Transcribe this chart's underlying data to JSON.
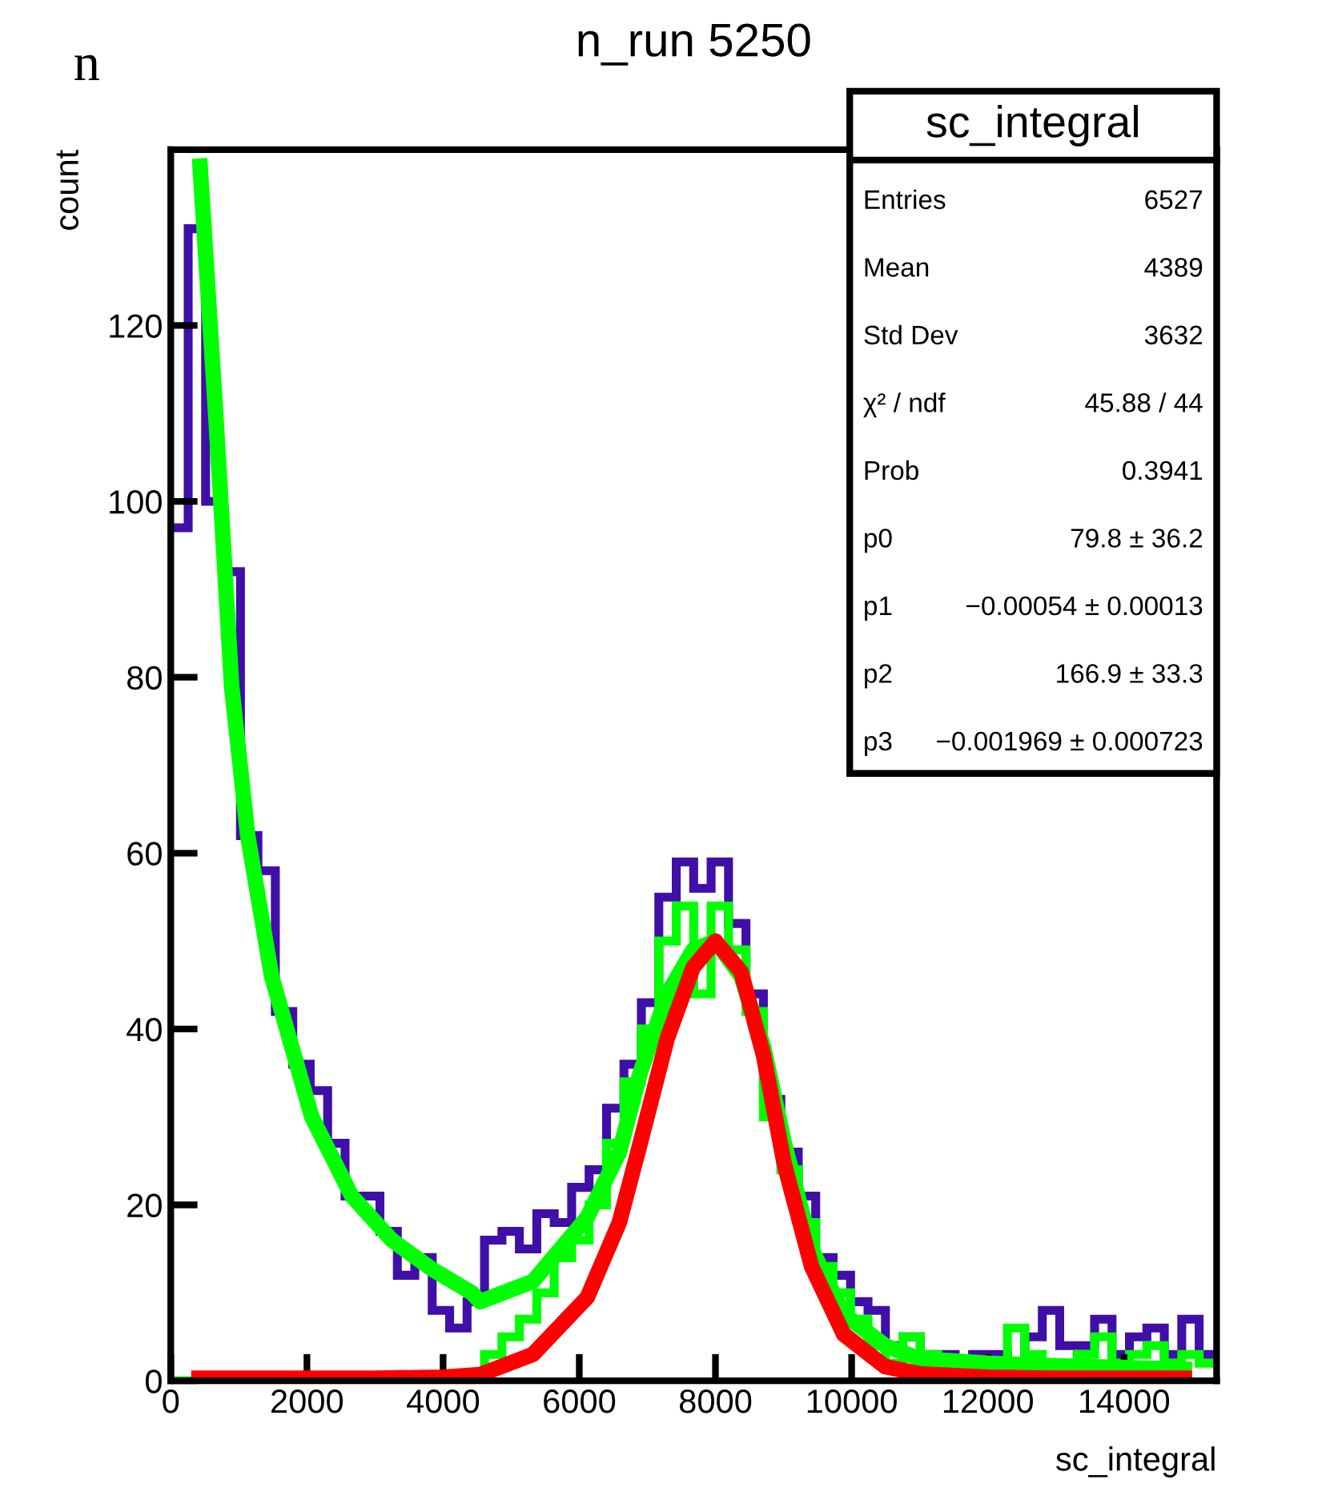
{
  "chart_data": {
    "type": "histogram",
    "title": "n_run 5250",
    "xlabel": "sc_integral",
    "ylabel": "count",
    "bins": [
      0,
      256,
      512,
      768,
      1024,
      1280,
      1536,
      1792,
      2048,
      2304,
      2560,
      2816,
      3072,
      3328,
      3584,
      3840,
      4096,
      4352,
      4608,
      4864,
      5120,
      5376,
      5632,
      5888,
      6144,
      6400,
      6656,
      6912,
      7168,
      7424,
      7680,
      7936,
      8192,
      8448,
      8704,
      8960,
      9216,
      9472,
      9728,
      9984,
      10240,
      10496,
      10752,
      11008,
      11264,
      11520,
      11776,
      12032,
      12288,
      12544,
      12800,
      13056,
      13312,
      13568,
      13824,
      14080,
      14336,
      14592,
      14848,
      15104,
      15360
    ],
    "series": [
      {
        "color": "#3f0fa8",
        "values": [
          97,
          131,
          100,
          92,
          62,
          58,
          42,
          36,
          33,
          27,
          21,
          21,
          17,
          12,
          14,
          8,
          6,
          9,
          16,
          17,
          15,
          19,
          18,
          22,
          24,
          31,
          36,
          43,
          55,
          59,
          56,
          59,
          52,
          44,
          32,
          26,
          21,
          14,
          12,
          9,
          8,
          4,
          5,
          3,
          3,
          2,
          3,
          3,
          2,
          5,
          8,
          4,
          4,
          7,
          3,
          5,
          6,
          3,
          7,
          3
        ]
      },
      {
        "color": "#00ff00",
        "values": [
          0,
          0,
          0,
          0,
          0,
          0,
          0,
          0,
          0,
          0,
          0,
          0,
          0,
          0,
          0,
          0,
          0,
          0,
          3,
          5,
          7,
          10,
          14,
          16,
          20,
          27,
          34,
          40,
          50,
          54,
          44,
          54,
          49,
          42,
          30,
          24,
          18,
          13,
          10,
          7,
          4,
          2,
          5,
          3,
          1,
          2,
          1,
          2,
          6,
          3,
          2,
          1,
          3,
          5,
          2,
          3,
          4,
          2,
          3,
          2
        ]
      },
      {
        "type": "line",
        "color": "#00ff00",
        "x": [
          424,
          660,
          894,
          1130,
          1482,
          2071,
          2659,
          3247,
          3835,
          4424,
          4540,
          5318,
          6118,
          6588,
          6894,
          7294,
          7671,
          8000,
          8376,
          8706,
          9012,
          9412,
          9882,
          10494,
          11000,
          12000,
          13000,
          14000,
          15000
        ],
        "values": [
          139,
          110,
          79,
          62,
          46,
          30,
          21,
          16,
          12.7,
          10,
          9,
          11.3,
          18.6,
          26,
          35,
          44,
          49,
          50,
          46,
          38,
          27,
          15,
          7.6,
          4,
          2.5,
          2,
          1.7,
          1.5,
          1.3
        ]
      },
      {
        "type": "line",
        "color": "#ff0000",
        "x": [
          300,
          1000,
          2000,
          3000,
          4000,
          4540,
          5318,
          6118,
          6588,
          6894,
          7294,
          7671,
          8000,
          8376,
          8706,
          9012,
          9412,
          9882,
          10494,
          11000,
          12000,
          13000,
          14000,
          15000
        ],
        "values": [
          0.3,
          0.3,
          0.3,
          0.3,
          0.4,
          0.7,
          3,
          9.5,
          18,
          27,
          39,
          47,
          50,
          46.5,
          37,
          24.6,
          13,
          5.3,
          1.6,
          0.8,
          0.4,
          0.3,
          0.3,
          0.3
        ]
      }
    ],
    "xlim": [
      0,
      15360
    ],
    "ylim": [
      0,
      140
    ],
    "xticks": [
      0,
      2000,
      4000,
      6000,
      8000,
      10000,
      12000,
      14000
    ],
    "yticks": [
      0,
      20,
      40,
      60,
      80,
      100,
      120
    ],
    "grid": false,
    "legend": false,
    "annotations": [
      "n",
      "sc_integral",
      "Entries",
      "6527",
      "Mean",
      "4389",
      "Std Dev",
      "3632",
      "χ² / ndf",
      "45.88 / 44",
      "Prob",
      "0.3941",
      "p0",
      "79.8 ± 36.2",
      "p1",
      "−0.00054 ± 0.00013",
      "p2",
      "166.9 ± 33.3",
      "p3",
      "−0.001969 ± 0.000723"
    ]
  }
}
